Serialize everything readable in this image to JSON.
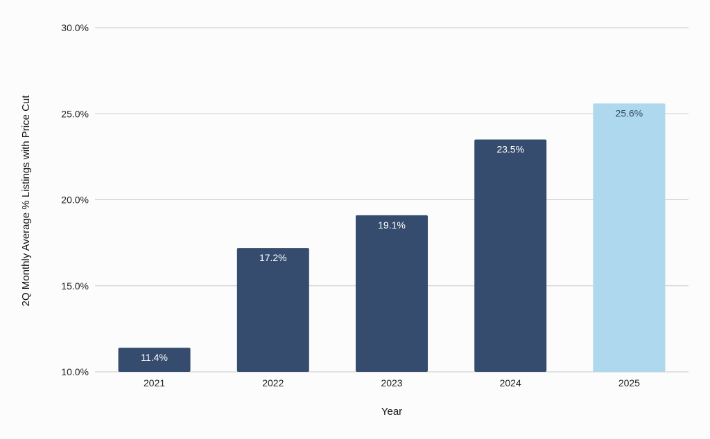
{
  "chart_data": {
    "type": "bar",
    "categories": [
      "2021",
      "2022",
      "2023",
      "2024",
      "2025"
    ],
    "values": [
      11.4,
      17.2,
      19.1,
      23.5,
      25.6
    ],
    "data_labels": [
      "11.4%",
      "17.2%",
      "19.1%",
      "23.5%",
      "25.6%"
    ],
    "title": "",
    "xlabel": "Year",
    "ylabel": "2Q Monthly Average % Listings with Price Cut",
    "ylim": [
      10,
      30
    ],
    "yticks": [
      10,
      15,
      20,
      25,
      30
    ],
    "ytick_labels": [
      "10.0%",
      "15.0%",
      "20.0%",
      "25.0%",
      "30.0%"
    ],
    "grid": true,
    "legend": "none",
    "colors": {
      "bar": "#364c6e",
      "highlight_bar": "#aed8ee",
      "label_on_dark": "#ffffff",
      "label_on_light": "#364c6e",
      "grid": "#c8c8c8",
      "background": "#fcfcfc"
    },
    "highlight_category": "2025"
  }
}
